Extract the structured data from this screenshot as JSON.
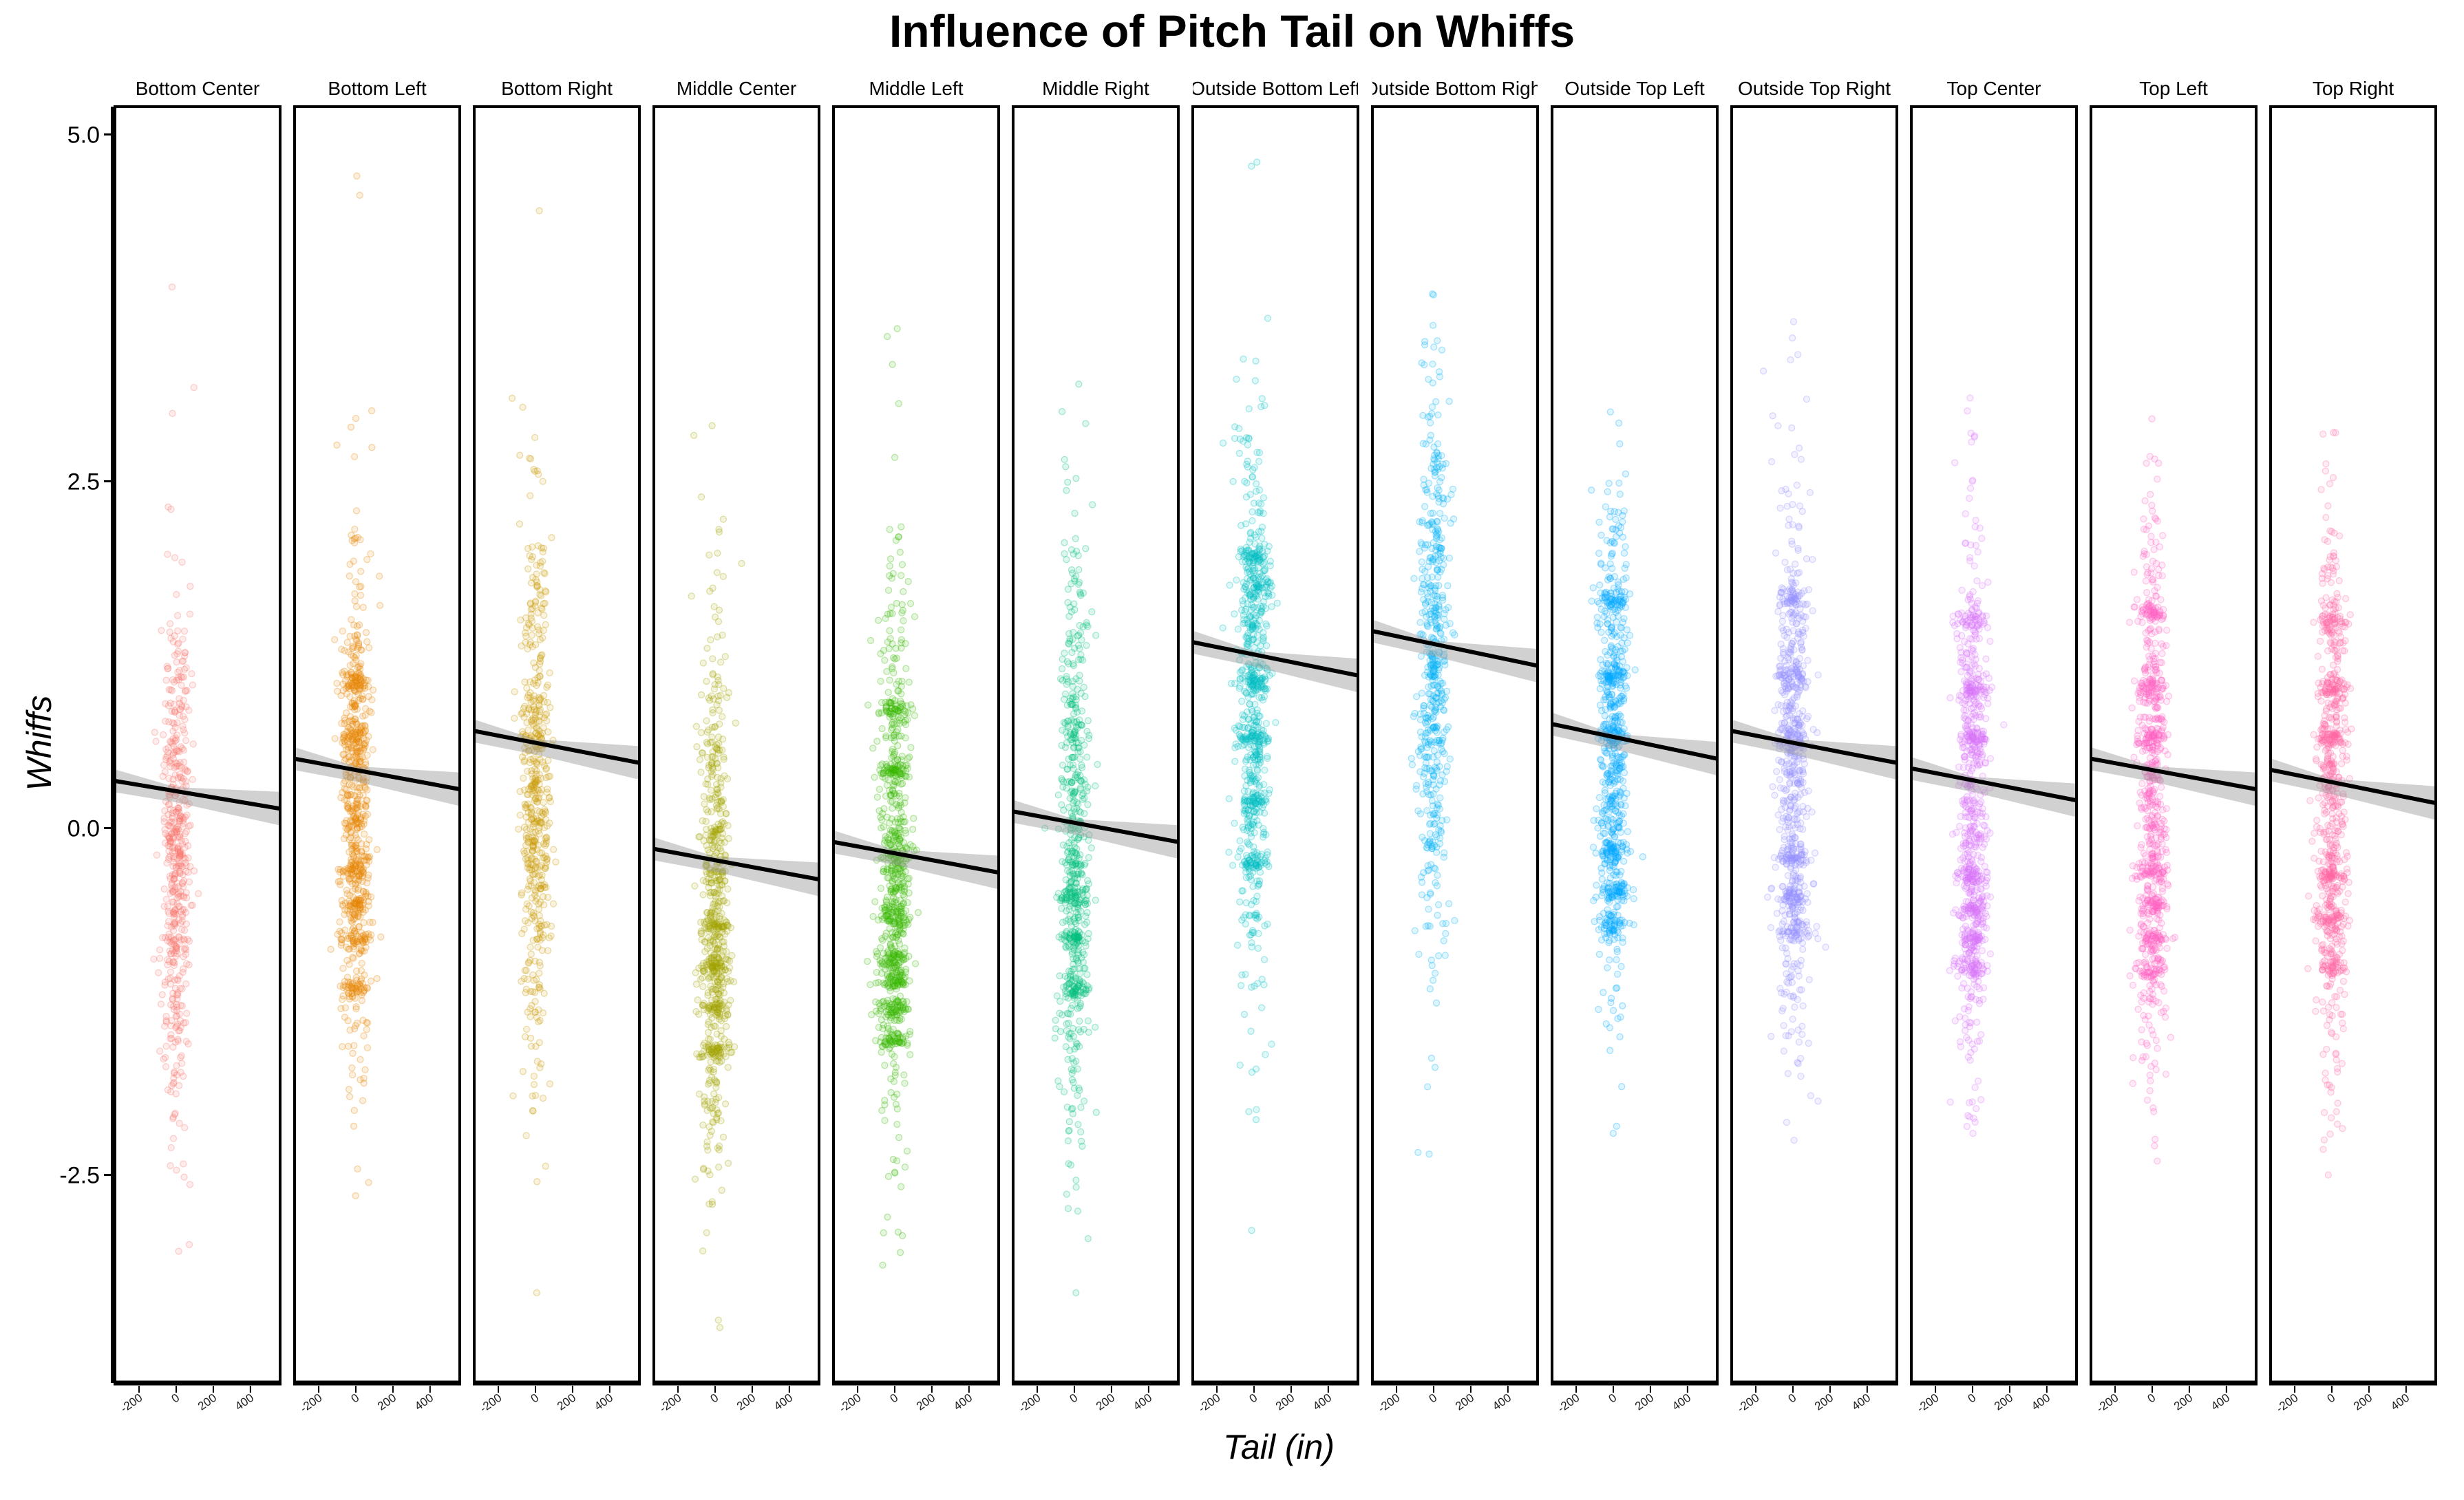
{
  "chart_data": {
    "type": "scatter",
    "title": "Influence of Pitch Tail on Whiffs",
    "xlabel": "Tail (in)",
    "ylabel": "Whiffs",
    "xlim": [
      -330,
      560
    ],
    "ylim": [
      -4.0,
      5.2
    ],
    "x_ticks": [
      -200,
      0,
      200,
      400
    ],
    "x_tick_labels": [
      "-200",
      "0",
      "200",
      "400"
    ],
    "y_ticks": [
      -2.5,
      0.0,
      2.5,
      5.0
    ],
    "y_tick_labels": [
      "-2.5",
      "0.0",
      "2.5",
      "5.0"
    ],
    "grid": false,
    "legend": "none",
    "facets": [
      {
        "name": "Bottom Center",
        "color": "#F8766D",
        "center": -0.2,
        "spread": 0.9,
        "ymin": -3.05,
        "ymax": 3.9,
        "bands": [],
        "trend": [
          0.34,
          0.14
        ]
      },
      {
        "name": "Bottom Left",
        "color": "#E58700",
        "center": 0.2,
        "spread": 0.85,
        "ymin": -2.65,
        "ymax": 4.7,
        "bands": [
          1.05,
          0.65,
          -0.3,
          -0.55,
          -0.8,
          -1.15
        ],
        "trend": [
          0.5,
          0.28
        ]
      },
      {
        "name": "Bottom Right",
        "color": "#C99800",
        "center": 0.3,
        "spread": 0.95,
        "ymin": -3.35,
        "ymax": 4.45,
        "bands": [],
        "trend": [
          0.7,
          0.47
        ]
      },
      {
        "name": "Middle Center",
        "color": "#A3A500",
        "center": -0.5,
        "spread": 0.95,
        "ymin": -3.6,
        "ymax": 2.9,
        "bands": [
          -0.7,
          -1.0,
          -1.3,
          -1.6
        ],
        "trend": [
          -0.15,
          -0.37
        ]
      },
      {
        "name": "Middle Left",
        "color": "#39B600",
        "center": -0.3,
        "spread": 1.0,
        "ymin": -3.15,
        "ymax": 3.6,
        "bands": [
          0.85,
          0.4,
          -0.2,
          -0.65,
          -0.95,
          -1.1,
          -1.3,
          -1.55
        ],
        "trend": [
          -0.1,
          -0.32
        ]
      },
      {
        "name": "Middle Right",
        "color": "#00BF7D",
        "center": -0.1,
        "spread": 1.0,
        "ymin": -3.35,
        "ymax": 3.2,
        "bands": [
          -0.5,
          -0.8,
          -1.15
        ],
        "trend": [
          0.12,
          -0.1
        ]
      },
      {
        "name": "Outside Bottom Left",
        "color": "#00BFC4",
        "center": 0.9,
        "spread": 1.0,
        "ymin": -2.9,
        "ymax": 4.8,
        "bands": [
          1.95,
          1.75,
          1.05,
          0.65,
          0.2,
          -0.25
        ],
        "trend": [
          1.34,
          1.1
        ]
      },
      {
        "name": "Outside Bottom Right",
        "color": "#00B0F6",
        "center": 1.2,
        "spread": 1.0,
        "ymin": -2.35,
        "ymax": 3.85,
        "bands": [],
        "trend": [
          1.42,
          1.17
        ]
      },
      {
        "name": "Outside Top Left",
        "color": "#00A9FF",
        "center": 0.5,
        "spread": 0.95,
        "ymin": -2.2,
        "ymax": 3.0,
        "bands": [
          1.65,
          1.1,
          0.65,
          -0.15,
          -0.45,
          -0.7
        ],
        "trend": [
          0.75,
          0.5
        ]
      },
      {
        "name": "Outside Top Right",
        "color": "#9590FF",
        "center": 0.4,
        "spread": 0.95,
        "ymin": -2.25,
        "ymax": 3.65,
        "bands": [
          1.65,
          1.1,
          0.65,
          -0.2,
          -0.5,
          -0.75
        ],
        "trend": [
          0.7,
          0.47
        ]
      },
      {
        "name": "Top Center",
        "color": "#DB72FB",
        "center": 0.2,
        "spread": 1.0,
        "ymin": -2.2,
        "ymax": 3.1,
        "bands": [
          1.5,
          1.0,
          0.65,
          -0.35,
          -0.6,
          -0.8,
          -1.0
        ],
        "trend": [
          0.43,
          0.2
        ]
      },
      {
        "name": "Top Left",
        "color": "#FF61C3",
        "center": 0.2,
        "spread": 1.0,
        "ymin": -2.4,
        "ymax": 2.95,
        "bands": [
          1.55,
          1.0,
          0.65,
          -0.3,
          -0.55,
          -0.8,
          -1.0
        ],
        "trend": [
          0.5,
          0.28
        ]
      },
      {
        "name": "Top Right",
        "color": "#FF67A4",
        "center": 0.2,
        "spread": 1.0,
        "ymin": -2.5,
        "ymax": 2.85,
        "bands": [
          1.5,
          1.0,
          0.65,
          -0.35,
          -0.65,
          -1.0
        ],
        "trend": [
          0.42,
          0.18
        ]
      }
    ]
  }
}
